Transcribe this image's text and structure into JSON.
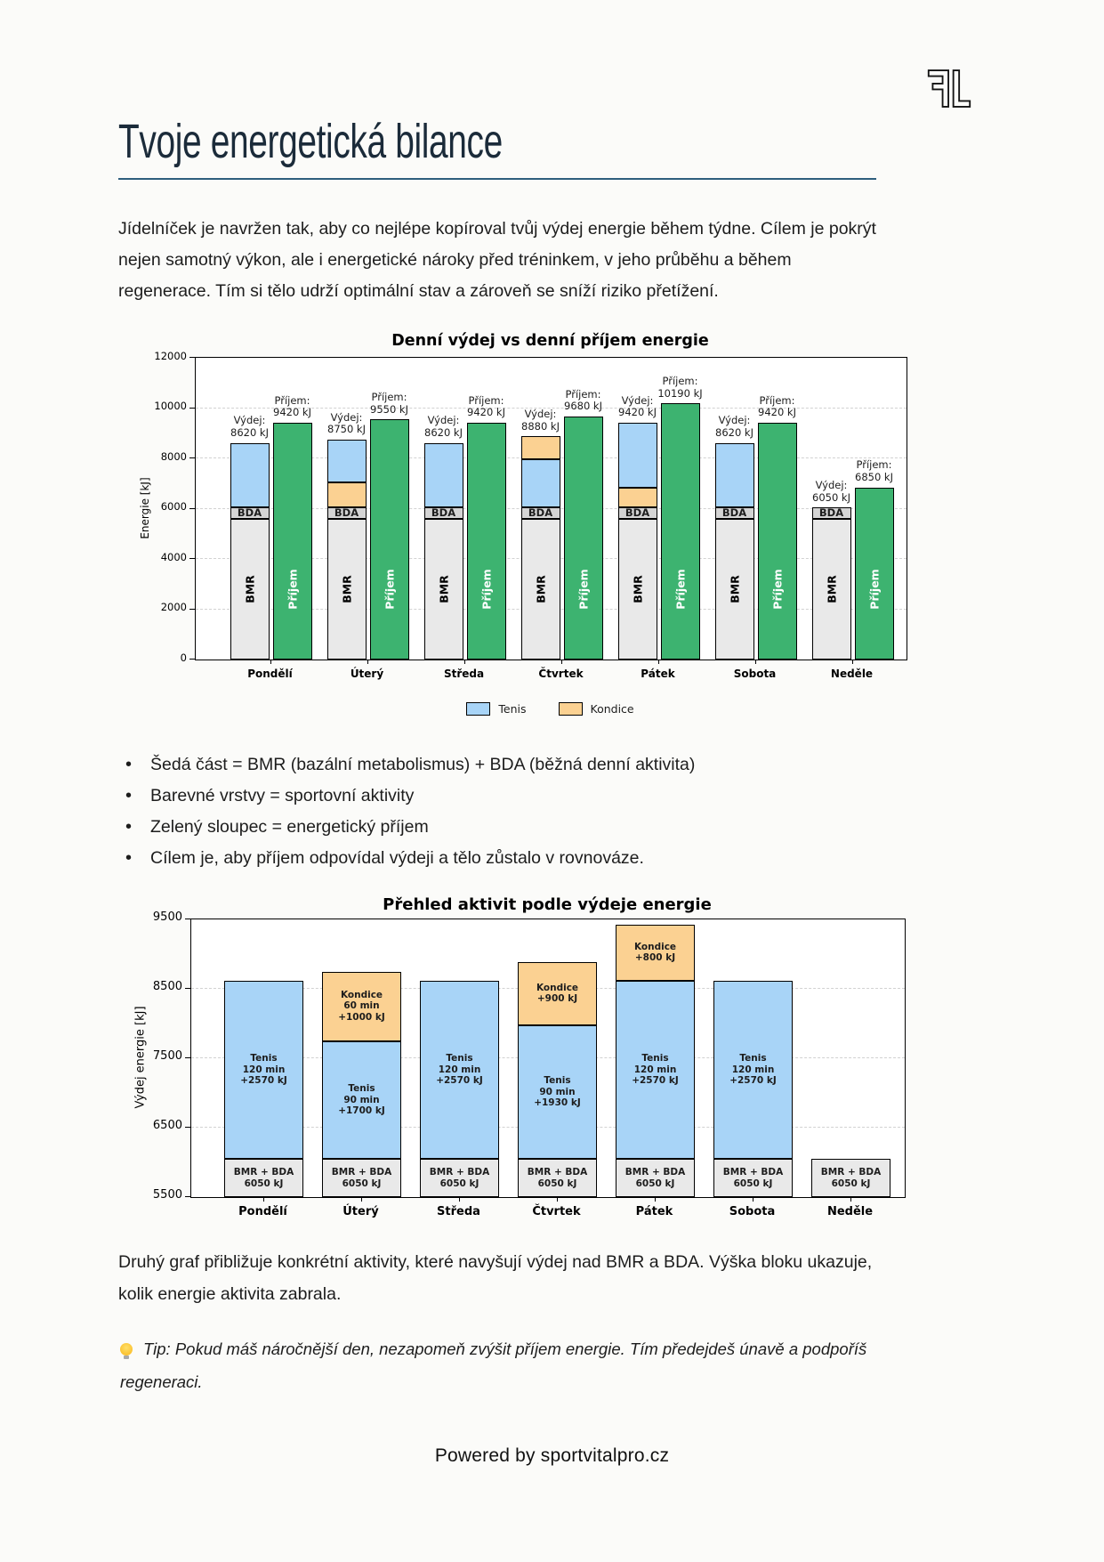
{
  "page": {
    "logo": "FL",
    "title": "Tvoje energetická bilance",
    "title_color": "#1b2b3a",
    "accent_rule_color": "#2e5e7d",
    "intro": "Jídelníček je navržen tak, aby co nejlépe kopíroval tvůj výdej energie během týdne. Cílem je pokrýt nejen samotný výkon, ale i energetické nároky před tréninkem, v jeho průběhu a během regenerace. Tím si tělo udrží optimální stav a zároveň se sníží riziko přetížení.",
    "bullets": [
      "Šedá část = BMR (bazální metabolismus) + BDA (běžná denní aktivita)",
      "Barevné vrstvy = sportovní aktivity",
      "Zelený sloupec = energetický příjem",
      "Cílem je, aby příjem odpovídal výdeji a tělo zůstalo v rovnováze."
    ],
    "chart2_caption": "Druhý graf přibližuje konkrétní aktivity, které navyšují výdej nad BMR a BDA. Výška bloku ukazuje, kolik energie aktivita zabrala.",
    "tip": "Tip: Pokud máš náročnější den, nezapomeň zvýšit příjem energie. Tím předejdeš únavě a podpoříš regeneraci.",
    "tip_icon": "lightbulb-icon",
    "footer": "Powered by sportvitalpro.cz"
  },
  "chart_data": [
    {
      "type": "bar",
      "title": "Denní výdej vs denní příjem energie",
      "ylabel": "Energie [kJ]",
      "ylim": [
        0,
        12000
      ],
      "yticks": [
        0,
        2000,
        4000,
        6000,
        8000,
        10000,
        12000
      ],
      "grid": "horizontal-dashed",
      "legend_position": "bottom",
      "legend": [
        {
          "label": "Tenis",
          "color": "#a8d4f7"
        },
        {
          "label": "Kondice",
          "color": "#fbd192"
        }
      ],
      "colors": {
        "Tenis": "#a8d4f7",
        "Kondice": "#fbd192",
        "prijem": "#3db370",
        "bmr": "#e9e9e9",
        "bda": "#d4d4d4"
      },
      "base_components": {
        "bmr_kj": 5600,
        "bda_kj": 450,
        "bmr_label": "BMR",
        "bda_label": "BDA"
      },
      "prijem_inner_label": "Příjem",
      "categories": [
        "Pondělí",
        "Úterý",
        "Středa",
        "Čtvrtek",
        "Pátek",
        "Sobota",
        "Neděle"
      ],
      "days": [
        {
          "day": "Pondělí",
          "vydej_total": 8620,
          "prijem": 9420,
          "vydej_label": [
            "Výdej:",
            "8620 kJ"
          ],
          "prijem_label": [
            "Příjem:",
            "9420 kJ"
          ],
          "layers": [
            {
              "name": "Tenis",
              "kj": 2570
            }
          ]
        },
        {
          "day": "Úterý",
          "vydej_total": 8750,
          "prijem": 9550,
          "vydej_label": [
            "Výdej:",
            "8750 kJ"
          ],
          "prijem_label": [
            "Příjem:",
            "9550 kJ"
          ],
          "layers": [
            {
              "name": "Kondice",
              "kj": 1000
            },
            {
              "name": "Tenis",
              "kj": 1700
            }
          ]
        },
        {
          "day": "Středa",
          "vydej_total": 8620,
          "prijem": 9420,
          "vydej_label": [
            "Výdej:",
            "8620 kJ"
          ],
          "prijem_label": [
            "Příjem:",
            "9420 kJ"
          ],
          "layers": [
            {
              "name": "Tenis",
              "kj": 2570
            }
          ]
        },
        {
          "day": "Čtvrtek",
          "vydej_total": 8880,
          "prijem": 9680,
          "vydej_label": [
            "Výdej:",
            "8880 kJ"
          ],
          "prijem_label": [
            "Příjem:",
            "9680 kJ"
          ],
          "layers": [
            {
              "name": "Tenis",
              "kj": 1930
            },
            {
              "name": "Kondice",
              "kj": 900
            }
          ]
        },
        {
          "day": "Pátek",
          "vydej_total": 9420,
          "prijem": 10190,
          "vydej_label": [
            "Výdej:",
            "9420 kJ"
          ],
          "prijem_label": [
            "Příjem:",
            "10190 kJ"
          ],
          "layers": [
            {
              "name": "Kondice",
              "kj": 800
            },
            {
              "name": "Tenis",
              "kj": 2570
            }
          ]
        },
        {
          "day": "Sobota",
          "vydej_total": 8620,
          "prijem": 9420,
          "vydej_label": [
            "Výdej:",
            "8620 kJ"
          ],
          "prijem_label": [
            "Příjem:",
            "9420 kJ"
          ],
          "layers": [
            {
              "name": "Tenis",
              "kj": 2570
            }
          ]
        },
        {
          "day": "Neděle",
          "vydej_total": 6050,
          "prijem": 6850,
          "vydej_label": [
            "Výdej:",
            "6050 kJ"
          ],
          "prijem_label": [
            "Příjem:",
            "6850 kJ"
          ],
          "layers": []
        }
      ]
    },
    {
      "type": "stacked-bar",
      "title": "Přehled aktivit podle výdeje energie",
      "ylabel": "Výdej energie [kJ]",
      "ylim": [
        5500,
        9500
      ],
      "yticks": [
        5500,
        6500,
        7500,
        8500,
        9500
      ],
      "grid": "horizontal-dashed",
      "colors": {
        "Tenis": "#a8d4f7",
        "Kondice": "#fbd192"
      },
      "base_block": {
        "kj": 6050,
        "lines": [
          "BMR + BDA",
          "6050 kJ"
        ],
        "color": "#e9e9e9"
      },
      "categories": [
        "Pondělí",
        "Úterý",
        "Středa",
        "Čtvrtek",
        "Pátek",
        "Sobota",
        "Neděle"
      ],
      "days": [
        {
          "day": "Pondělí",
          "blocks": [
            {
              "name": "Tenis",
              "kj": 2570,
              "lines": [
                "Tenis",
                "120 min",
                "+2570 kJ"
              ]
            }
          ]
        },
        {
          "day": "Úterý",
          "blocks": [
            {
              "name": "Tenis",
              "kj": 1700,
              "lines": [
                "Tenis",
                "90 min",
                "+1700 kJ"
              ]
            },
            {
              "name": "Kondice",
              "kj": 1000,
              "lines": [
                "Kondice",
                "60 min",
                "+1000 kJ"
              ]
            }
          ]
        },
        {
          "day": "Středa",
          "blocks": [
            {
              "name": "Tenis",
              "kj": 2570,
              "lines": [
                "Tenis",
                "120 min",
                "+2570 kJ"
              ]
            }
          ]
        },
        {
          "day": "Čtvrtek",
          "blocks": [
            {
              "name": "Tenis",
              "kj": 1930,
              "lines": [
                "Tenis",
                "90 min",
                "+1930 kJ"
              ]
            },
            {
              "name": "Kondice",
              "kj": 900,
              "lines": [
                "Kondice",
                "+900 kJ"
              ]
            }
          ]
        },
        {
          "day": "Pátek",
          "blocks": [
            {
              "name": "Tenis",
              "kj": 2570,
              "lines": [
                "Tenis",
                "120 min",
                "+2570 kJ"
              ]
            },
            {
              "name": "Kondice",
              "kj": 800,
              "lines": [
                "Kondice",
                "+800 kJ"
              ]
            }
          ]
        },
        {
          "day": "Sobota",
          "blocks": [
            {
              "name": "Tenis",
              "kj": 2570,
              "lines": [
                "Tenis",
                "120 min",
                "+2570 kJ"
              ]
            }
          ]
        },
        {
          "day": "Neděle",
          "blocks": []
        }
      ]
    }
  ]
}
